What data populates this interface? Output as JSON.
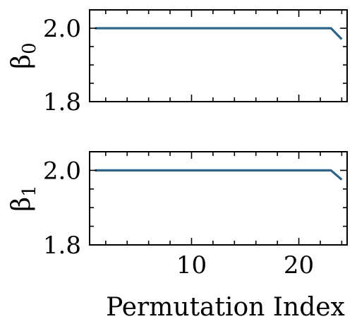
{
  "chart_data": [
    {
      "type": "line",
      "ylabel": "β",
      "ylabel_subscript": "0",
      "xlim": [
        0.5,
        24.5
      ],
      "ylim": [
        1.8,
        2.05
      ],
      "yticks": [
        1.8,
        2.0
      ],
      "yticklabels": [
        "1.8",
        "2.0"
      ],
      "xticks": [
        10,
        20
      ],
      "xticklabels": [],
      "series": [
        {
          "x": [
            1,
            2,
            3,
            4,
            5,
            6,
            7,
            8,
            9,
            10,
            11,
            12,
            13,
            14,
            15,
            16,
            17,
            18,
            19,
            20,
            21,
            22,
            23,
            24
          ],
          "y": [
            2.0,
            2.0,
            2.0,
            2.0,
            2.0,
            2.0,
            2.0,
            2.0,
            2.0,
            2.0,
            2.0,
            2.0,
            2.0,
            2.0,
            2.0,
            2.0,
            2.0,
            2.0,
            2.0,
            2.0,
            2.0,
            2.0,
            2.0,
            1.97
          ],
          "color": "#2e6389"
        }
      ],
      "grid": false,
      "legend": "none"
    },
    {
      "type": "line",
      "ylabel": "β",
      "ylabel_subscript": "1",
      "xlabel": "Permutation Index",
      "xlim": [
        0.5,
        24.5
      ],
      "ylim": [
        1.8,
        2.05
      ],
      "yticks": [
        1.8,
        2.0
      ],
      "yticklabels": [
        "1.8",
        "2.0"
      ],
      "xticks": [
        10,
        20
      ],
      "xticklabels": [
        "10",
        "20"
      ],
      "series": [
        {
          "x": [
            1,
            2,
            3,
            4,
            5,
            6,
            7,
            8,
            9,
            10,
            11,
            12,
            13,
            14,
            15,
            16,
            17,
            18,
            19,
            20,
            21,
            22,
            23,
            24
          ],
          "y": [
            2.0,
            2.0,
            2.0,
            2.0,
            2.0,
            2.0,
            2.0,
            2.0,
            2.0,
            2.0,
            2.0,
            2.0,
            2.0,
            2.0,
            2.0,
            2.0,
            2.0,
            2.0,
            2.0,
            2.0,
            2.0,
            2.0,
            2.0,
            1.975
          ],
          "color": "#2e6389"
        }
      ],
      "grid": false,
      "legend": "none"
    }
  ]
}
